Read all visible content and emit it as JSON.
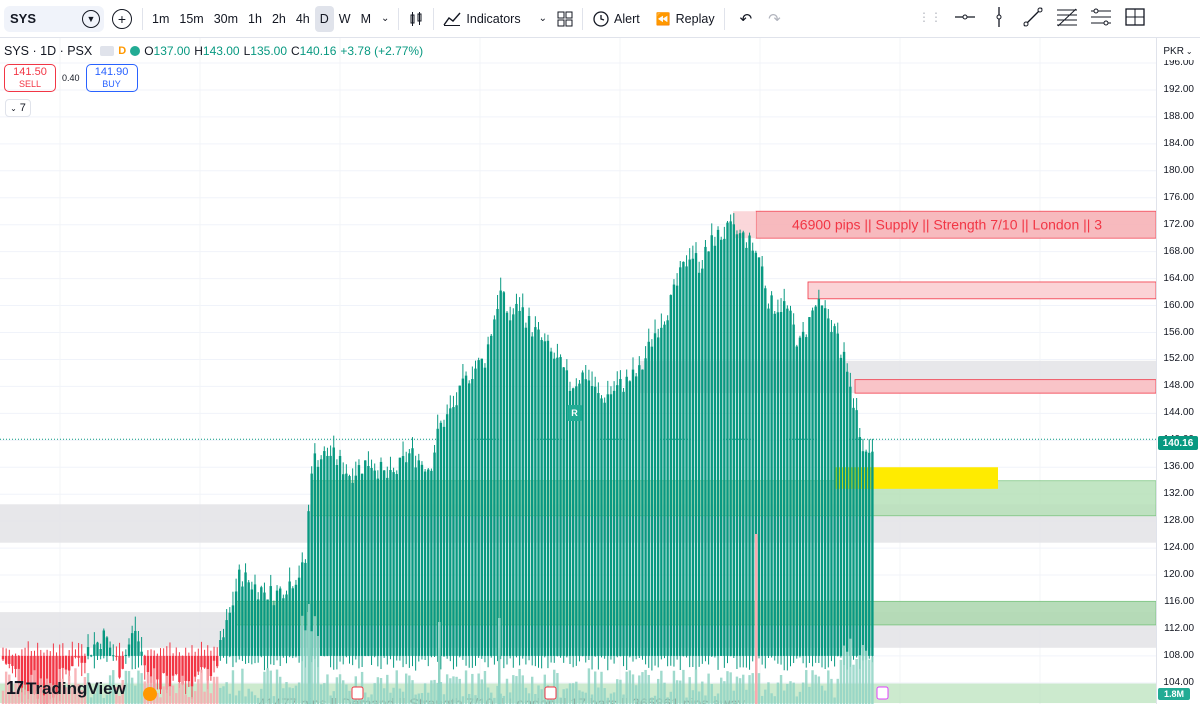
{
  "toolbar": {
    "symbol": "SYS",
    "intervals": [
      "1m",
      "15m",
      "30m",
      "1h",
      "2h",
      "4h",
      "D",
      "W",
      "M"
    ],
    "active_interval": "D",
    "indicators_label": "Indicators",
    "alert_label": "Alert",
    "replay_label": "Replay"
  },
  "legend": {
    "title": "SYS · 1D · PSX",
    "open_label": "O",
    "open_value": "137.00",
    "high_label": "H",
    "high_value": "143.00",
    "low_label": "L",
    "low_value": "135.00",
    "close_label": "C",
    "close_value": "140.16",
    "change": "+3.78 (+2.77%)"
  },
  "trade": {
    "sell_price": "141.50",
    "sell_label": "SELL",
    "spread": "0.40",
    "buy_price": "141.90",
    "buy_label": "BUY",
    "collapse_count": "7"
  },
  "axis": {
    "currency": "PKR",
    "ticks": [
      "196.00",
      "192.00",
      "188.00",
      "184.00",
      "180.00",
      "176.00",
      "172.00",
      "168.00",
      "164.00",
      "160.00",
      "156.00",
      "152.00",
      "148.00",
      "144.00",
      "140.00",
      "136.00",
      "132.00",
      "128.00",
      "124.00",
      "120.00",
      "116.00",
      "112.00",
      "108.00",
      "104.00"
    ],
    "last_price": "140.16",
    "volume": "1.8M"
  },
  "annotations": {
    "supply_label": "46900 pips || Supply || Strength 7/10 || London || 3",
    "bottom_label": "41477 pips || Demand || Strength 7/10 || London || 17 bars || 365861 pips away",
    "r_badge": "R"
  },
  "colors": {
    "up": "#089981",
    "down": "#f23645",
    "supply_zone": "#f7b3b8",
    "demand_zone": "#b7e1b9",
    "neutral_zone": "#e4e4e8",
    "highlight": "#ffeb00"
  },
  "branding": {
    "logo_text": "TradingView"
  },
  "chart_data": {
    "type": "candlestick",
    "y_min": 104,
    "y_max": 196,
    "last": 140.16
  }
}
